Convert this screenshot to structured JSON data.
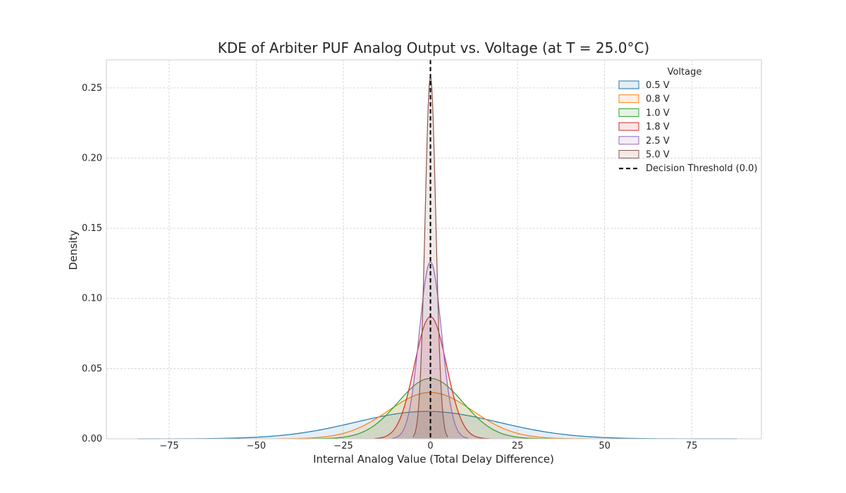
{
  "chart_data": {
    "type": "area",
    "title": "KDE of Arbiter PUF Analog Output vs. Voltage (at T = 25.0°C)",
    "xlabel": "Internal Analog Value (Total Delay Difference)",
    "ylabel": "Density",
    "xlim": [
      -93,
      95
    ],
    "ylim": [
      0,
      0.27
    ],
    "xticks": [
      -75,
      -50,
      -25,
      0,
      25,
      50,
      75
    ],
    "xtick_labels": [
      "−75",
      "−50",
      "−25",
      "0",
      "25",
      "50",
      "75"
    ],
    "yticks": [
      0,
      0.05,
      0.1,
      0.15,
      0.2,
      0.25
    ],
    "ytick_labels": [
      "0.00",
      "0.05",
      "0.10",
      "0.15",
      "0.20",
      "0.25"
    ],
    "grid": true,
    "legend": {
      "title": "Voltage",
      "placement": "top-right",
      "threshold_label": "Decision Threshold (0.0)"
    },
    "threshold_x": 0.0,
    "series": [
      {
        "name": "0.5 V",
        "color": "#1f77b4",
        "peak_x": -1,
        "peak_density": 0.0195,
        "x_range": [
          -84,
          88
        ]
      },
      {
        "name": "0.8 V",
        "color": "#ff7f0e",
        "peak_x": 0,
        "peak_density": 0.033,
        "x_range": [
          -44,
          46
        ]
      },
      {
        "name": "1.0 V",
        "color": "#2ca02c",
        "peak_x": 0,
        "peak_density": 0.043,
        "x_range": [
          -34,
          34
        ]
      },
      {
        "name": "1.8 V",
        "color": "#d62728",
        "peak_x": 0,
        "peak_density": 0.087,
        "x_range": [
          -16,
          17
        ]
      },
      {
        "name": "2.5 V",
        "color": "#9467bd",
        "peak_x": 0,
        "peak_density": 0.126,
        "x_range": [
          -11,
          11
        ]
      },
      {
        "name": "5.0 V",
        "color": "#8c564b",
        "peak_x": 0,
        "peak_density": 0.258,
        "x_range": [
          -5,
          5
        ]
      }
    ]
  }
}
